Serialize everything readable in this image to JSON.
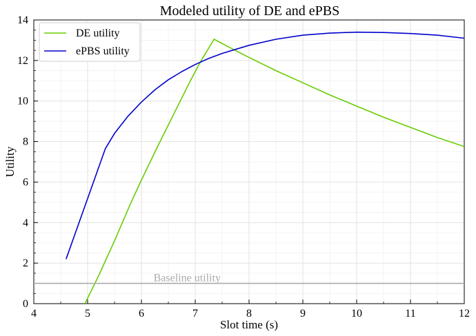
{
  "chart_data": {
    "type": "line",
    "title": "Modeled utility of DE and ePBS",
    "xlabel": "Slot time (s)",
    "ylabel": "Utility",
    "xlim": [
      4,
      12
    ],
    "ylim": [
      0,
      14
    ],
    "xticks": [
      "4",
      "5",
      "6",
      "7",
      "8",
      "9",
      "10",
      "11",
      "12"
    ],
    "yticks": [
      "0",
      "2",
      "4",
      "6",
      "8",
      "10",
      "12",
      "14"
    ],
    "grid": true,
    "legend_position": "top-left",
    "series": [
      {
        "name": "DE utility",
        "color": "#66cc00",
        "x": [
          4.95,
          5.2,
          5.5,
          5.8,
          6.0,
          6.3,
          6.6,
          6.9,
          7.1,
          7.35,
          7.6,
          8.0,
          8.5,
          9.0,
          9.5,
          10.0,
          10.5,
          11.0,
          11.5,
          12.0
        ],
        "y": [
          0.0,
          1.35,
          3.1,
          4.95,
          6.1,
          7.75,
          9.35,
          10.95,
          11.95,
          13.05,
          12.7,
          12.15,
          11.5,
          10.9,
          10.3,
          9.75,
          9.2,
          8.7,
          8.2,
          7.75
        ]
      },
      {
        "name": "ePBS utility",
        "color": "#0000cc",
        "x": [
          4.6,
          5.33,
          5.5,
          5.75,
          6.0,
          6.25,
          6.5,
          6.75,
          7.0,
          7.25,
          7.5,
          7.75,
          8.0,
          8.5,
          9.0,
          9.5,
          10.0,
          10.5,
          11.0,
          11.5,
          12.0
        ],
        "y": [
          2.2,
          7.65,
          8.4,
          9.25,
          9.95,
          10.55,
          11.05,
          11.45,
          11.8,
          12.1,
          12.35,
          12.55,
          12.75,
          13.05,
          13.25,
          13.35,
          13.4,
          13.38,
          13.33,
          13.25,
          13.1
        ]
      },
      {
        "name": "Baseline utility",
        "color": "#aaaaaa",
        "x": [
          4,
          12
        ],
        "y": [
          1,
          1
        ]
      }
    ],
    "annotations": [
      {
        "text": "Baseline utility",
        "x": 6.85,
        "y": 1.0
      }
    ]
  }
}
